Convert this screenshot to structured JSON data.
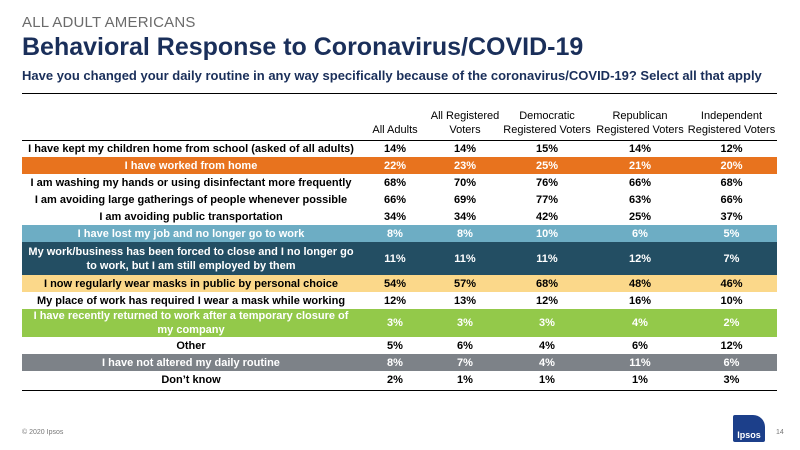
{
  "header": {
    "eyebrow": "ALL ADULT AMERICANS",
    "title": "Behavioral Response to Coronavirus/COVID-19",
    "subtitle": "Have you changed your daily routine in any way specifically because of the coronavirus/COVID-19? Select all that apply"
  },
  "table": {
    "columns": [
      "",
      "All Adults",
      "All Registered Voters",
      "Democratic Registered Voters",
      "Republican Registered Voters",
      "Independent Registered Voters"
    ],
    "rows": [
      {
        "label": "I have kept my children home from school (asked of all adults)",
        "values": [
          "14%",
          "14%",
          "15%",
          "14%",
          "12%"
        ],
        "highlight": "none"
      },
      {
        "label": "I have worked from home",
        "values": [
          "22%",
          "23%",
          "25%",
          "21%",
          "20%"
        ],
        "highlight": "orange"
      },
      {
        "label": "I am washing my hands or using disinfectant more frequently",
        "values": [
          "68%",
          "70%",
          "76%",
          "66%",
          "68%"
        ],
        "highlight": "none"
      },
      {
        "label": "I am avoiding large gatherings of people whenever possible",
        "values": [
          "66%",
          "69%",
          "77%",
          "63%",
          "66%"
        ],
        "highlight": "none"
      },
      {
        "label": "I am avoiding public transportation",
        "values": [
          "34%",
          "34%",
          "42%",
          "25%",
          "37%"
        ],
        "highlight": "none"
      },
      {
        "label": "I have lost my job and no longer go to work",
        "values": [
          "8%",
          "8%",
          "10%",
          "6%",
          "5%"
        ],
        "highlight": "blue"
      },
      {
        "label": "My work/business has been forced to close and I no longer go to work, but I am still employed by them",
        "values": [
          "11%",
          "11%",
          "11%",
          "12%",
          "7%"
        ],
        "highlight": "navy"
      },
      {
        "label": "I now regularly wear masks in public by personal choice",
        "values": [
          "54%",
          "57%",
          "68%",
          "48%",
          "46%"
        ],
        "highlight": "yellow"
      },
      {
        "label": "My place of work has required I wear a mask while working",
        "values": [
          "12%",
          "13%",
          "12%",
          "16%",
          "10%"
        ],
        "highlight": "none"
      },
      {
        "label": "I have recently returned to work after a temporary closure of my company",
        "values": [
          "3%",
          "3%",
          "3%",
          "4%",
          "2%"
        ],
        "highlight": "green"
      },
      {
        "label": "Other",
        "values": [
          "5%",
          "6%",
          "4%",
          "6%",
          "12%"
        ],
        "highlight": "none"
      },
      {
        "label": "I have not altered my daily routine",
        "values": [
          "8%",
          "7%",
          "4%",
          "11%",
          "6%"
        ],
        "highlight": "gray"
      },
      {
        "label": "Don’t know",
        "values": [
          "2%",
          "1%",
          "1%",
          "1%",
          "3%"
        ],
        "highlight": "none"
      }
    ]
  },
  "footer": {
    "copyright": "© 2020 Ipsos",
    "page_number": "14",
    "logo_text": "Ipsos"
  }
}
